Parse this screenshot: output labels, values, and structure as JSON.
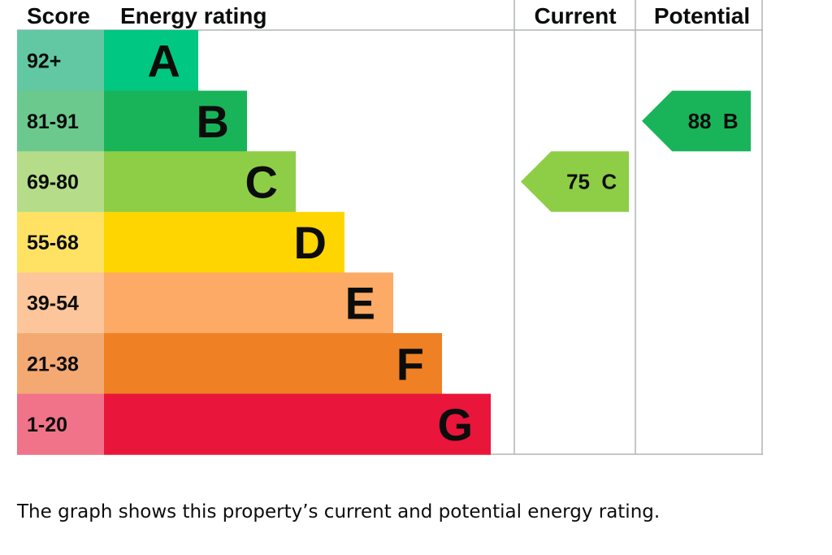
{
  "chart_data": {
    "type": "bar",
    "headers": {
      "score": "Score",
      "rating": "Energy rating",
      "current": "Current",
      "potential": "Potential"
    },
    "bands": [
      {
        "letter": "A",
        "range": "92+",
        "min": 92,
        "max": 100,
        "color": "#00c781",
        "score_color": "#62c8a3"
      },
      {
        "letter": "B",
        "range": "81-91",
        "min": 81,
        "max": 91,
        "color": "#19b459",
        "score_color": "#6cc98e"
      },
      {
        "letter": "C",
        "range": "69-80",
        "min": 69,
        "max": 80,
        "color": "#8dce46",
        "score_color": "#b5dd89"
      },
      {
        "letter": "D",
        "range": "55-68",
        "min": 55,
        "max": 68,
        "color": "#ffd500",
        "score_color": "#ffe264"
      },
      {
        "letter": "E",
        "range": "39-54",
        "min": 39,
        "max": 54,
        "color": "#fcaa65",
        "score_color": "#fdc69a"
      },
      {
        "letter": "F",
        "range": "21-38",
        "min": 21,
        "max": 38,
        "color": "#ef8023",
        "score_color": "#f4a973"
      },
      {
        "letter": "G",
        "range": "1-20",
        "min": 1,
        "max": 20,
        "color": "#e9153b",
        "score_color": "#f07389"
      }
    ],
    "current": {
      "value": 75,
      "letter": "C",
      "label": "75  C",
      "color": "#8dce46"
    },
    "potential": {
      "value": 88,
      "letter": "B",
      "label": "88  B",
      "color": "#19b459"
    }
  },
  "caption": "The graph shows this property’s current and potential energy rating."
}
